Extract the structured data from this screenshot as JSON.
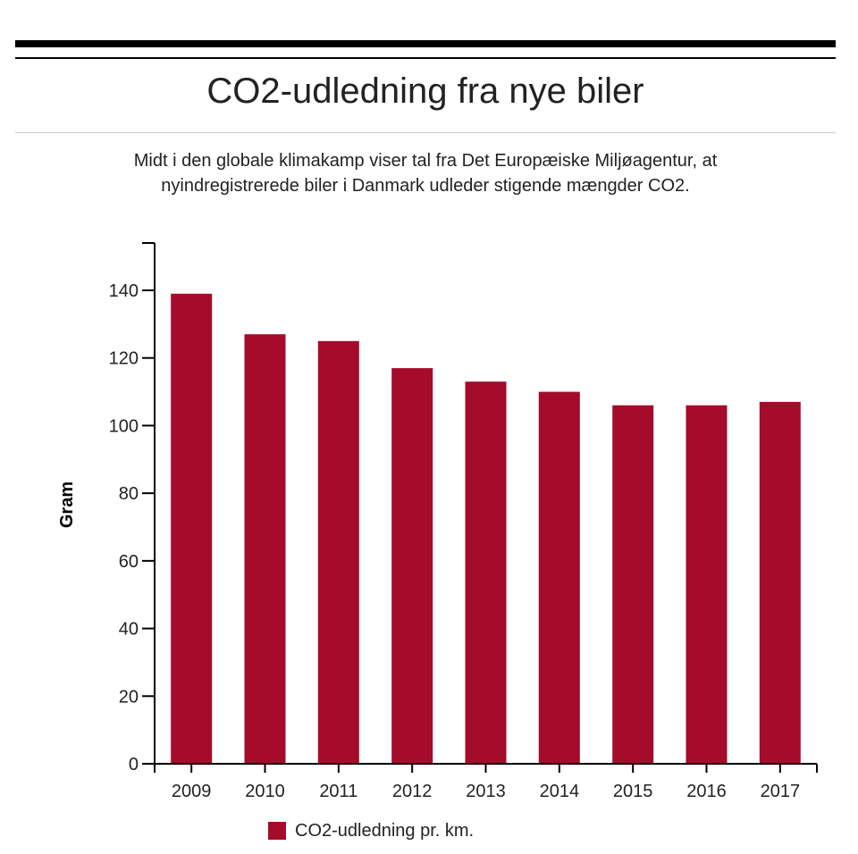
{
  "chart_data": {
    "type": "bar",
    "title": "CO2-udledning fra nye biler",
    "subtitle_lines": [
      "Midt i den globale klimakamp viser tal fra Det Europæiske Miljøagentur, at",
      "nyindregistrerede biler i Danmark udleder stigende mængder CO2."
    ],
    "xlabel": "",
    "ylabel": "Gram",
    "categories": [
      "2009",
      "2010",
      "2011",
      "2012",
      "2013",
      "2014",
      "2015",
      "2016",
      "2017"
    ],
    "series": [
      {
        "name": "CO2-udledning pr. km.",
        "color": "#a50b2a",
        "values": [
          139,
          127,
          125,
          117,
          113,
          110,
          106,
          106,
          107
        ]
      }
    ],
    "ylim": [
      0,
      154
    ],
    "yticks": [
      0,
      20,
      40,
      60,
      80,
      100,
      120,
      140
    ],
    "grid": false,
    "legend_position": "bottom-center"
  }
}
